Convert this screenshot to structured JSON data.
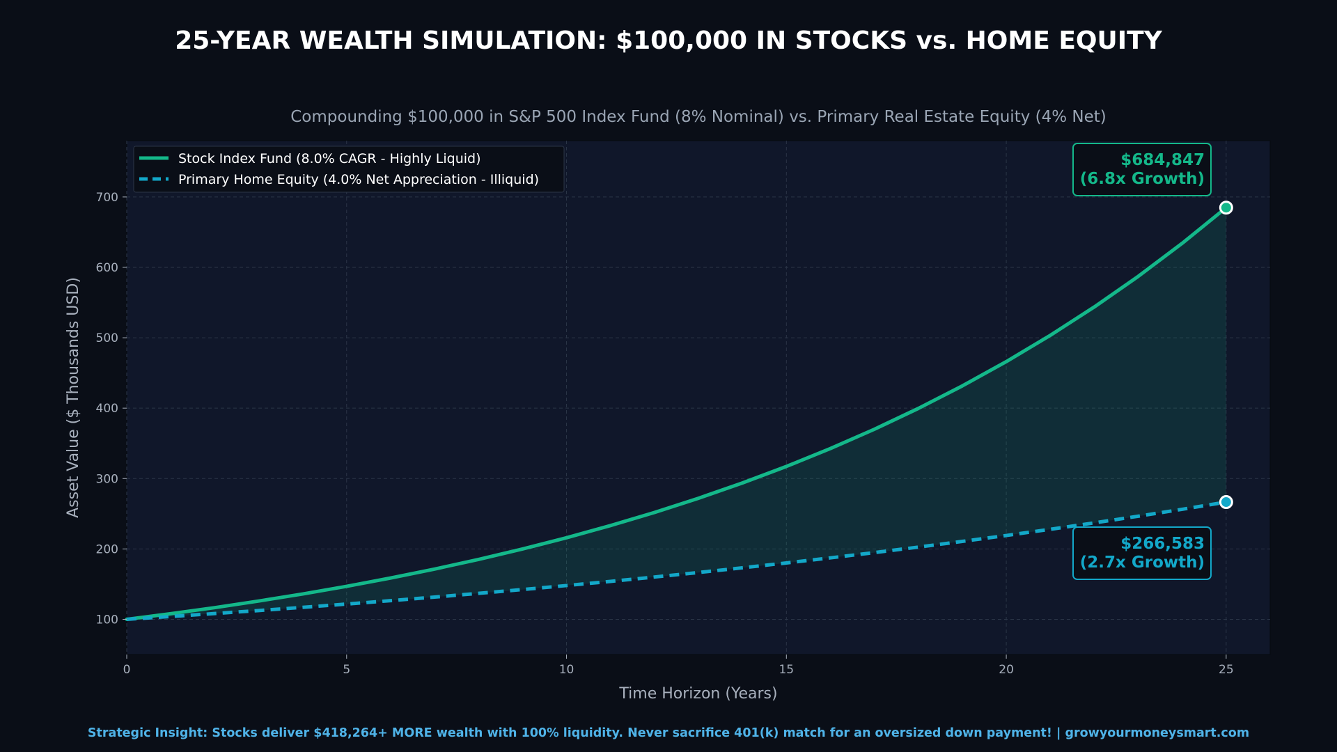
{
  "title": "25-YEAR WEALTH SIMULATION: $100,000 IN STOCKS vs. HOME EQUITY",
  "subtitle": "Compounding $100,000 in S&P 500 Index Fund (8% Nominal) vs. Primary Real Estate Equity (4% Net)",
  "footer": "Strategic Insight: Stocks deliver $418,264+ MORE wealth with 100% liquidity. Never sacrifice 401(k) match for an oversized down payment! | growyourmoneysmart.com",
  "colors": {
    "background": "#0a0e17",
    "plot_bg": "#10172a",
    "stock": "#14b88a",
    "home": "#13a8c9",
    "footer": "#4fb3e8"
  },
  "chart_data": {
    "type": "line",
    "xlabel": "Time Horizon (Years)",
    "ylabel": "Asset Value ($ Thousands USD)",
    "xlim": [
      0,
      26
    ],
    "ylim": [
      50,
      780
    ],
    "xticks": [
      0,
      5,
      10,
      15,
      20,
      25
    ],
    "yticks": [
      100,
      200,
      300,
      400,
      500,
      600,
      700
    ],
    "grid": true,
    "legend_position": "top-left",
    "x": [
      0,
      1,
      2,
      3,
      4,
      5,
      6,
      7,
      8,
      9,
      10,
      11,
      12,
      13,
      14,
      15,
      16,
      17,
      18,
      19,
      20,
      21,
      22,
      23,
      24,
      25
    ],
    "series": [
      {
        "name": "Stock Index Fund (8.0% CAGR - Highly Liquid)",
        "style": "solid",
        "values": [
          100.0,
          108.0,
          116.6,
          126.0,
          136.0,
          146.9,
          158.7,
          171.4,
          185.1,
          199.9,
          215.9,
          233.2,
          251.8,
          272.0,
          293.7,
          317.2,
          342.6,
          370.0,
          399.6,
          431.6,
          466.1,
          503.4,
          543.7,
          587.2,
          634.2,
          684.8
        ]
      },
      {
        "name": "Primary Home Equity (4.0% Net Appreciation - Illiquid)",
        "style": "dashed",
        "values": [
          100.0,
          104.0,
          108.2,
          112.5,
          117.0,
          121.7,
          126.5,
          131.6,
          136.9,
          142.3,
          148.0,
          153.9,
          160.1,
          166.5,
          173.2,
          180.1,
          187.3,
          194.8,
          202.6,
          210.7,
          219.1,
          227.9,
          237.0,
          246.5,
          256.3,
          266.6
        ]
      }
    ],
    "annotations": [
      {
        "series": 0,
        "x": 25,
        "y": 684.847,
        "line1": "$684,847",
        "line2": "(6.8x Growth)"
      },
      {
        "series": 1,
        "x": 25,
        "y": 266.583,
        "line1": "$266,583",
        "line2": "(2.7x Growth)"
      }
    ]
  }
}
